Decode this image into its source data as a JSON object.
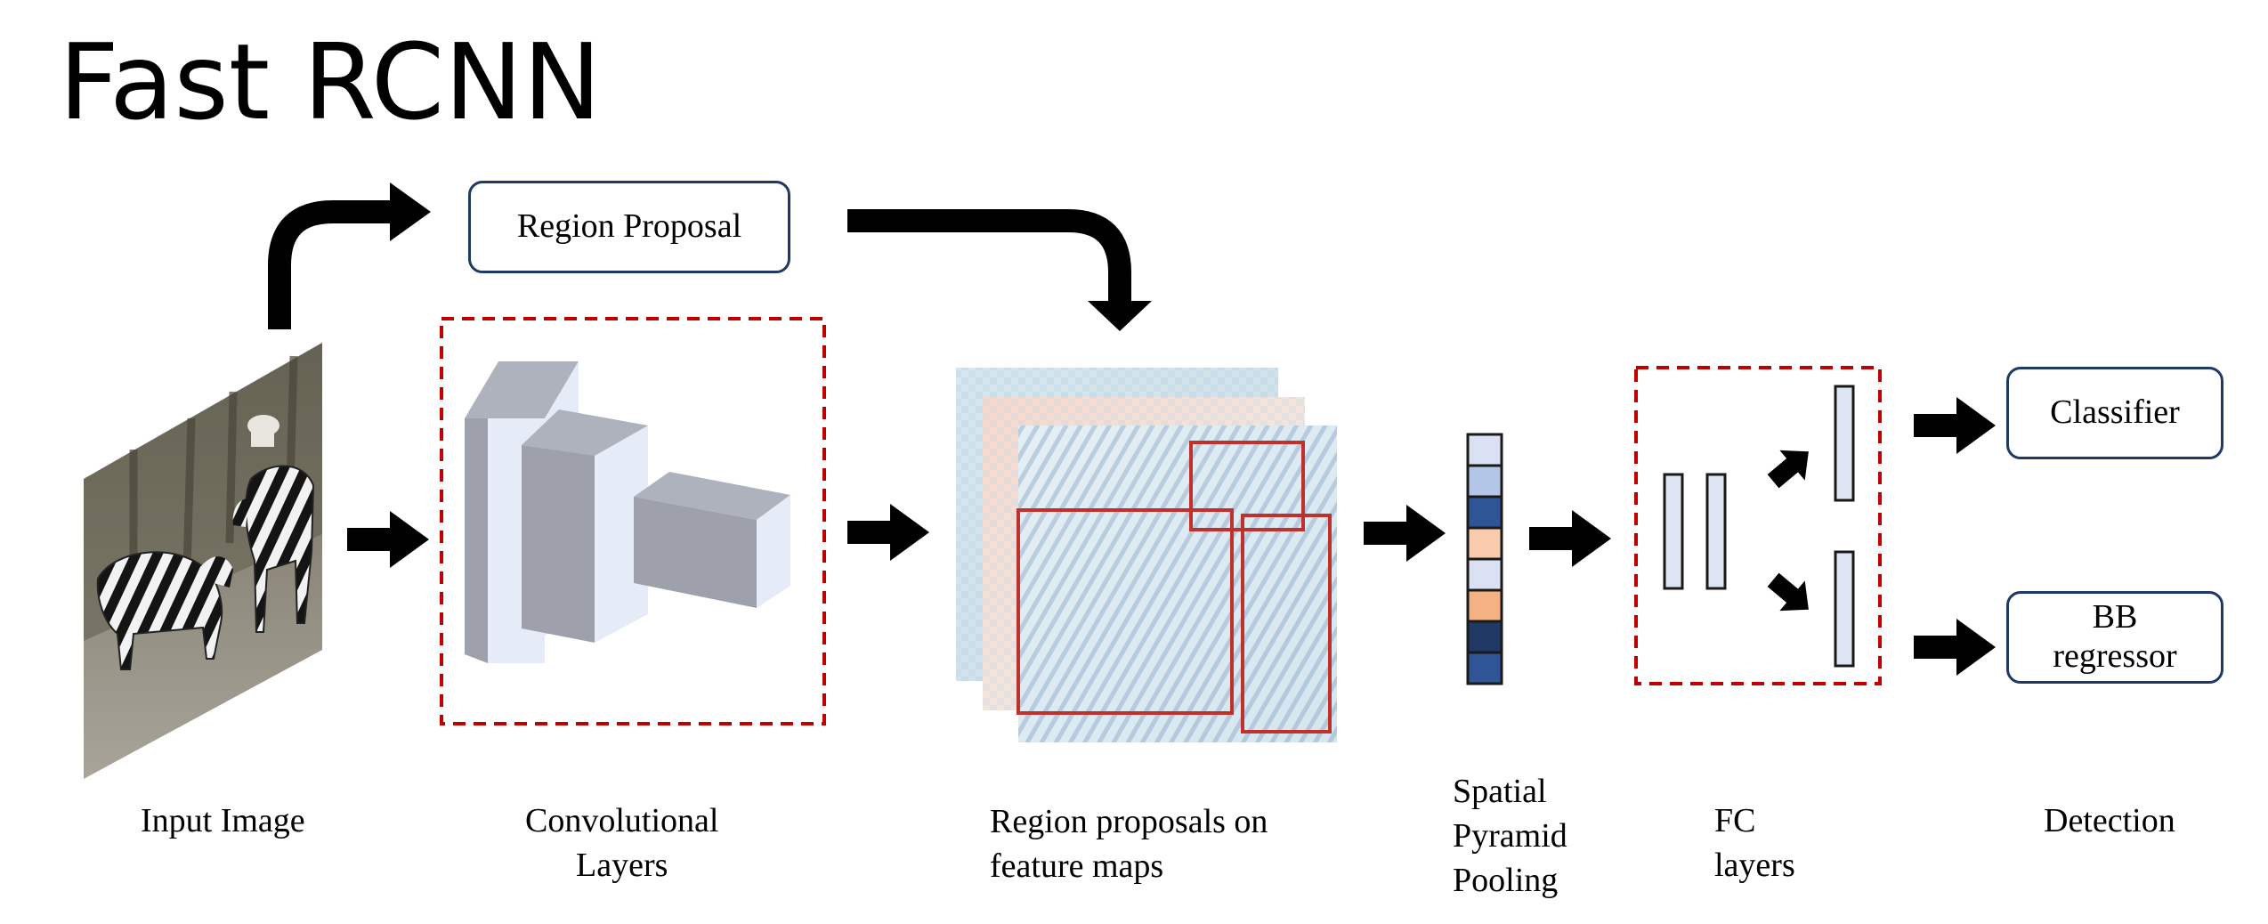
{
  "title": "Fast RCNN",
  "boxes": {
    "region_proposal": "Region Proposal",
    "classifier": "Classifier",
    "bb_regressor_line1": "BB",
    "bb_regressor_line2": "regressor"
  },
  "stage_labels": {
    "input_image": "Input Image",
    "conv_line1": "Convolutional",
    "conv_line2": "Layers",
    "feature_line1": "Region proposals on",
    "feature_line2": "feature maps",
    "spp_line1": "Spatial",
    "spp_line2": "Pyramid",
    "spp_line3": "Pooling",
    "fc_line1": "FC",
    "fc_line2": "layers",
    "detection": "Detection"
  },
  "colors": {
    "arrow": "#000000",
    "box_border": "#1f3864",
    "dashed_border": "#c00000",
    "proposal_red": "#c0312b",
    "block_front": "#e6ebf8",
    "block_side": "#9ea1ab",
    "block_top": "#aeb2bd",
    "fc_fill": "#dde4f2",
    "fc_border": "#1a1a1a"
  },
  "spp_cells": [
    "#d9e1f2",
    "#b4c6e7",
    "#2f5597",
    "#f8cbad",
    "#d9e1f2",
    "#f4b183",
    "#203864",
    "#2f5597"
  ],
  "icons": {
    "input_image": "zebra-photo",
    "arrows": "thick-black-arrow"
  }
}
